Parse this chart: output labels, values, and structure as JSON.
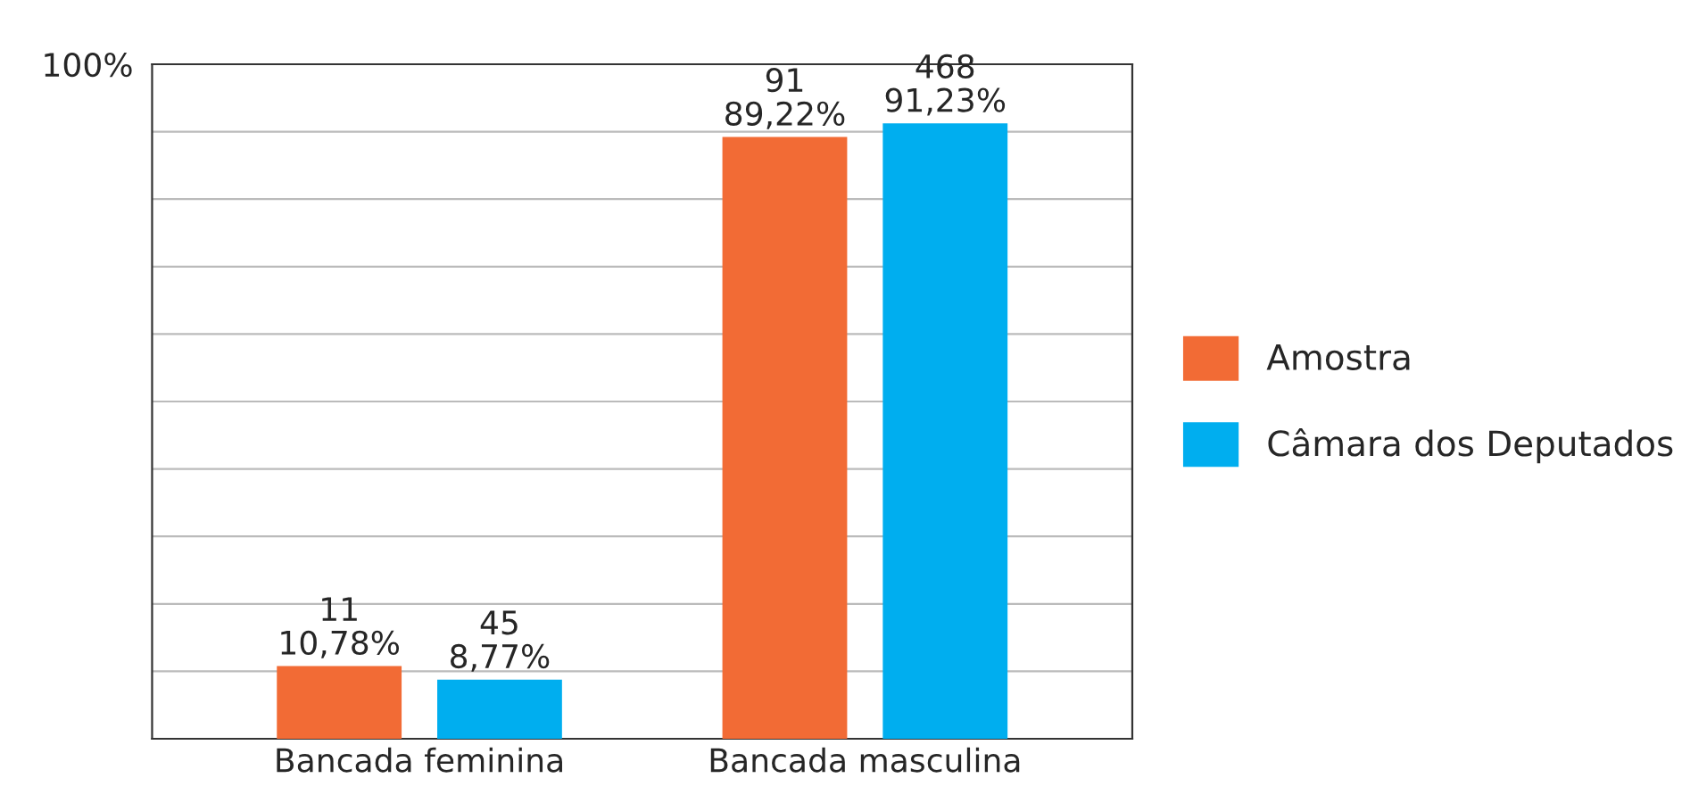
{
  "chart_data": {
    "type": "bar",
    "categories": [
      "Bancada feminina",
      "Bancada masculina"
    ],
    "series": [
      {
        "name": "Amostra",
        "color": "#f26b35",
        "values": [
          10.78,
          89.22
        ],
        "value_labels": [
          "11\n10,78%",
          "91\n89,22%"
        ]
      },
      {
        "name": "Câmara dos Deputados",
        "color": "#00aeef",
        "values": [
          8.77,
          91.23
        ],
        "value_labels": [
          "45\n8,77%",
          "468\n91,23%"
        ]
      }
    ],
    "ylim": [
      0,
      100
    ],
    "yticks": [
      {
        "value": 0,
        "label": null
      },
      {
        "value": 10,
        "label": null
      },
      {
        "value": 20,
        "label": null
      },
      {
        "value": 30,
        "label": null
      },
      {
        "value": 40,
        "label": null
      },
      {
        "value": 50,
        "label": null
      },
      {
        "value": 60,
        "label": null
      },
      {
        "value": 70,
        "label": null
      },
      {
        "value": 80,
        "label": null
      },
      {
        "value": 90,
        "label": null
      },
      {
        "value": 100,
        "label": "100%"
      }
    ],
    "grid": "y",
    "legend": "right"
  }
}
